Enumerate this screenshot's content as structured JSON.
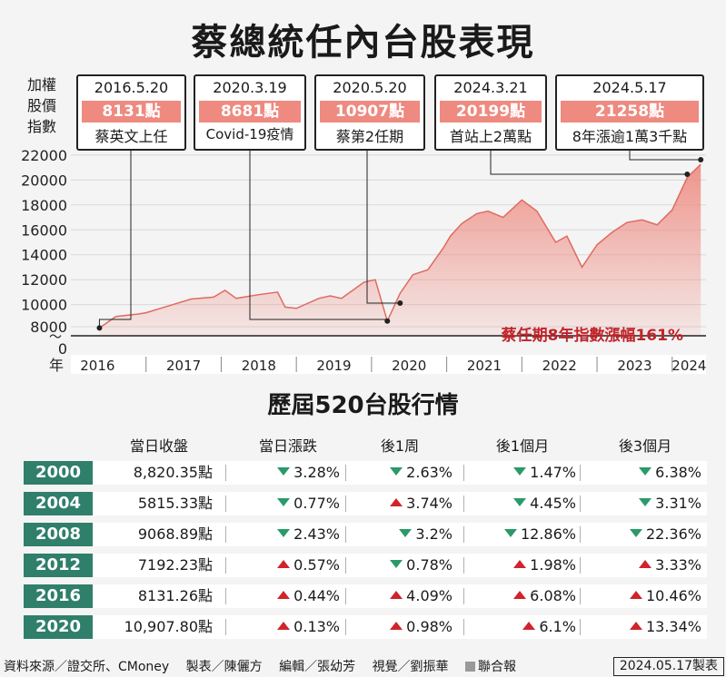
{
  "title": "蔡總統任內台股表現",
  "y_header": [
    "加權",
    "股價",
    "指數"
  ],
  "events": [
    {
      "date": "2016.5.20",
      "value": "8131點",
      "label": "蔡英文上任"
    },
    {
      "date": "2020.3.19",
      "value": "8681點",
      "label": "Covid-19疫情"
    },
    {
      "date": "2020.5.20",
      "value": "10907點",
      "label": "蔡第2任期"
    },
    {
      "date": "2024.3.21",
      "value": "20199點",
      "label": "首站上2萬點"
    },
    {
      "date": "2024.5.17",
      "value": "21258點",
      "label": "8年漲逾1萬3千點"
    }
  ],
  "chart_data": {
    "type": "area",
    "y_ticks": [
      "22000",
      "20000",
      "18000",
      "16000",
      "14000",
      "12000",
      "10000",
      "8000",
      "0"
    ],
    "axis_break": "～",
    "x_axis_unit": "年",
    "x_ticks": [
      "2016",
      "2017",
      "2018",
      "2019",
      "2020",
      "2021",
      "2022",
      "2023",
      "2024"
    ],
    "ylim": [
      7500,
      22500
    ],
    "x": [
      2016.38,
      2016.6,
      2016.9,
      2017.0,
      2017.3,
      2017.6,
      2017.9,
      2018.05,
      2018.2,
      2018.5,
      2018.75,
      2018.85,
      2019.0,
      2019.3,
      2019.45,
      2019.6,
      2019.9,
      2020.05,
      2020.21,
      2020.38,
      2020.55,
      2020.75,
      2020.95,
      2021.05,
      2021.2,
      2021.4,
      2021.55,
      2021.75,
      2022.0,
      2022.2,
      2022.45,
      2022.6,
      2022.8,
      2023.0,
      2023.2,
      2023.4,
      2023.6,
      2023.8,
      2024.0,
      2024.2,
      2024.38
    ],
    "y": [
      8131,
      9050,
      9250,
      9350,
      9900,
      10450,
      10600,
      11150,
      10500,
      10800,
      11000,
      9800,
      9700,
      10500,
      10700,
      10500,
      11800,
      12000,
      8681,
      10907,
      12400,
      12800,
      14500,
      15500,
      16500,
      17300,
      17500,
      17000,
      18400,
      17500,
      15000,
      15500,
      13000,
      14800,
      15800,
      16600,
      16800,
      16400,
      17600,
      20199,
      21258
    ],
    "series": [
      {
        "name": "",
        "color": "#ee8a80"
      }
    ],
    "annotation": "蔡任期8年指數漲幅161%",
    "annotation_color": "#c0242a"
  },
  "table": {
    "title": "歷屆520台股行情",
    "headers": [
      "當日收盤",
      "當日漲跌",
      "後1周",
      "後1個月",
      "後3個月"
    ],
    "rows": [
      {
        "year": "2000",
        "close": "8,820.35點",
        "day": {
          "dir": "down",
          "text": "3.28%"
        },
        "week": {
          "dir": "down",
          "text": "2.63%"
        },
        "month": {
          "dir": "down",
          "text": "1.47%"
        },
        "month3": {
          "dir": "down",
          "text": "6.38%"
        }
      },
      {
        "year": "2004",
        "close": "5815.33點",
        "day": {
          "dir": "down",
          "text": "0.77%"
        },
        "week": {
          "dir": "up",
          "text": "3.74%"
        },
        "month": {
          "dir": "down",
          "text": "4.45%"
        },
        "month3": {
          "dir": "down",
          "text": "3.31%"
        }
      },
      {
        "year": "2008",
        "close": "9068.89點",
        "day": {
          "dir": "down",
          "text": "2.43%"
        },
        "week": {
          "dir": "down",
          "text": "3.2%"
        },
        "month": {
          "dir": "down",
          "text": "12.86%"
        },
        "month3": {
          "dir": "down",
          "text": "22.36%"
        }
      },
      {
        "year": "2012",
        "close": "7192.23點",
        "day": {
          "dir": "up",
          "text": "0.57%"
        },
        "week": {
          "dir": "down",
          "text": "0.78%"
        },
        "month": {
          "dir": "up",
          "text": "1.98%"
        },
        "month3": {
          "dir": "up",
          "text": "3.33%"
        }
      },
      {
        "year": "2016",
        "close": "8131.26點",
        "day": {
          "dir": "up",
          "text": "0.44%"
        },
        "week": {
          "dir": "up",
          "text": "4.09%"
        },
        "month": {
          "dir": "up",
          "text": "6.08%"
        },
        "month3": {
          "dir": "up",
          "text": "10.46%"
        }
      },
      {
        "year": "2020",
        "close": "10,907.80點",
        "day": {
          "dir": "up",
          "text": "0.13%"
        },
        "week": {
          "dir": "up",
          "text": "0.98%"
        },
        "month": {
          "dir": "up",
          "text": "6.1%"
        },
        "month3": {
          "dir": "up",
          "text": "13.34%"
        }
      }
    ]
  },
  "footer": {
    "source": "資料來源／證交所、CMoney",
    "table_by": "製表／陳儷方",
    "editor": "編輯／張幼芳",
    "visual": "視覺／劉振華",
    "brand": "聯合報",
    "date": "2024.05.17製表"
  },
  "colors": {
    "area": "#ee8a80",
    "year_badge": "#2f7f6a",
    "up": "#d0242a",
    "down": "#2a9a6a"
  }
}
